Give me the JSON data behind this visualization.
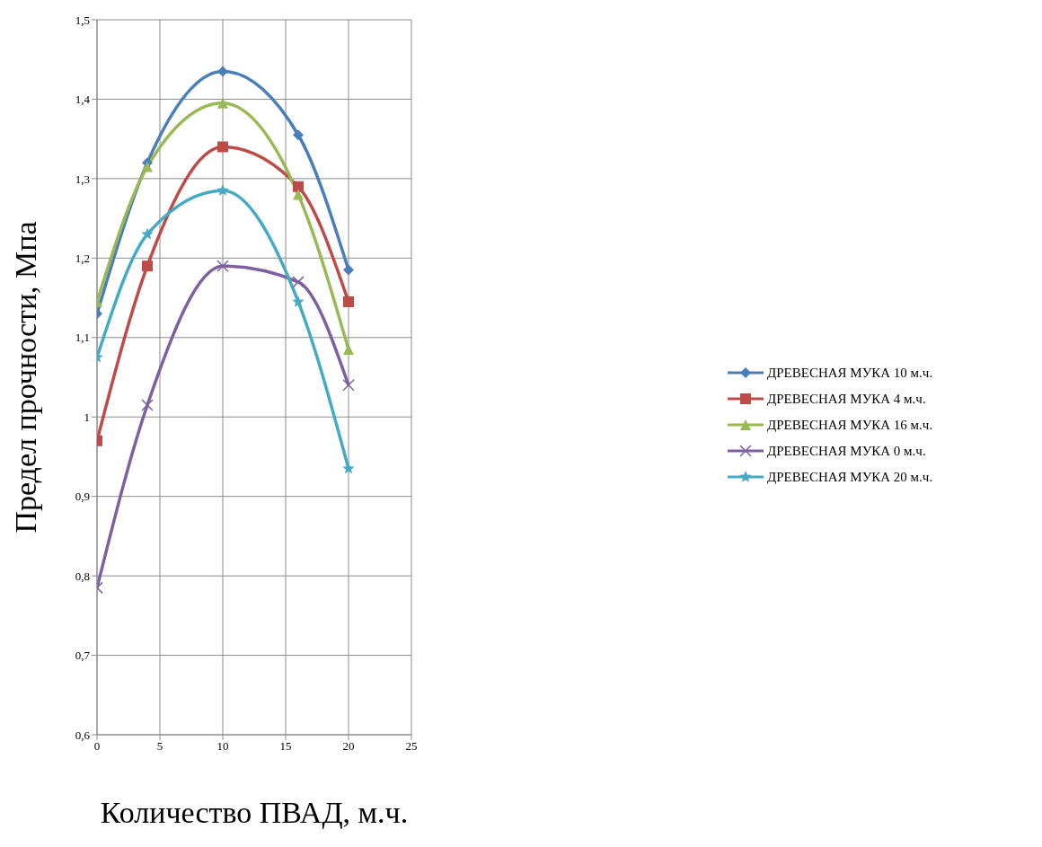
{
  "chart_data": {
    "type": "line",
    "xlabel": "Количество ПВАД, м.ч.",
    "ylabel": "Предел прочности, Мпа",
    "x": [
      0,
      4,
      10,
      16,
      20
    ],
    "series": [
      {
        "name": "ДРЕВЕСНАЯ МУКА 10 м.ч.",
        "color": "#4a7ebb",
        "marker": "diamond",
        "values": [
          1.13,
          1.32,
          1.435,
          1.355,
          1.185
        ]
      },
      {
        "name": "ДРЕВЕСНАЯ МУКА 4 м.ч.",
        "color": "#be4b48",
        "marker": "square",
        "values": [
          0.97,
          1.19,
          1.34,
          1.29,
          1.145
        ]
      },
      {
        "name": "ДРЕВЕСНАЯ МУКА 16 м.ч.",
        "color": "#98b954",
        "marker": "triangle",
        "values": [
          1.145,
          1.315,
          1.395,
          1.28,
          1.085
        ]
      },
      {
        "name": "ДРЕВЕСНАЯ МУКА 0 м.ч.",
        "color": "#7d60a0",
        "marker": "cross",
        "values": [
          0.785,
          1.015,
          1.19,
          1.17,
          1.04
        ]
      },
      {
        "name": "ДРЕВЕСНАЯ МУКА 20 м.ч.",
        "color": "#46aac5",
        "marker": "star",
        "values": [
          1.075,
          1.23,
          1.285,
          1.145,
          0.935
        ]
      }
    ],
    "xlim": [
      0,
      25
    ],
    "xticks": [
      0,
      5,
      10,
      15,
      20,
      25
    ],
    "ylim": [
      0.6,
      1.5
    ],
    "yticks": [
      {
        "value": 0.6,
        "label": "0,6"
      },
      {
        "value": 0.7,
        "label": "0,7"
      },
      {
        "value": 0.8,
        "label": "0,8"
      },
      {
        "value": 0.9,
        "label": "0,9"
      },
      {
        "value": 1,
        "label": "1"
      },
      {
        "value": 1.1,
        "label": "1,1"
      },
      {
        "value": 1.2,
        "label": "1,2"
      },
      {
        "value": 1.3,
        "label": "1,3"
      },
      {
        "value": 1.4,
        "label": "1,4"
      },
      {
        "value": 1.5,
        "label": "1,5"
      }
    ],
    "grid": true,
    "legend": "right",
    "line_style": "solid"
  }
}
